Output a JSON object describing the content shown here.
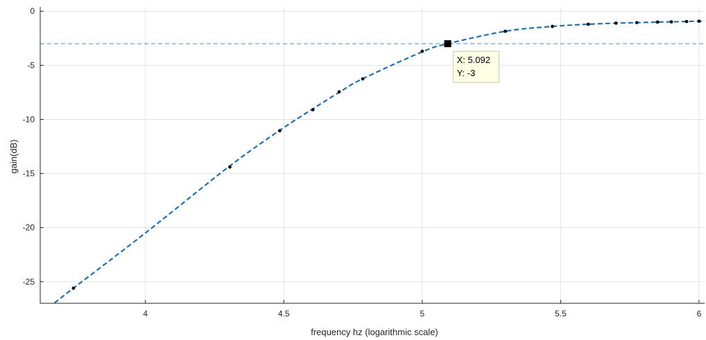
{
  "chart_data": {
    "type": "line",
    "title": "",
    "xlabel": "frequency hz (logarithmic scale)",
    "ylabel": "gain(dB)",
    "xlim": [
      3.62,
      6.02
    ],
    "ylim": [
      -27,
      0.4
    ],
    "xticks": [
      4,
      4.5,
      5,
      5.5,
      6
    ],
    "xtick_labels": [
      "4",
      "4.5",
      "5",
      "5.5",
      "6"
    ],
    "yticks": [
      0,
      -5,
      -10,
      -15,
      -20,
      -25
    ],
    "ytick_labels": [
      "0",
      "-5",
      "-10",
      "-15",
      "-20",
      "-25"
    ],
    "grid": true,
    "colors": {
      "curve": "#1f6fb4",
      "reference": "#5fa3df",
      "points": "#0a0a0a",
      "grid": "#e3e3e3",
      "axis": "#262626",
      "datatip_bg": "#ffffe6",
      "datatip_border": "#c8c8a8"
    },
    "series": [
      {
        "style": "dashed-line",
        "x": [
          3.65,
          3.74,
          4.0,
          4.3,
          4.48,
          4.6,
          4.7,
          4.78,
          5.0,
          5.092,
          5.3,
          5.47,
          5.6,
          5.7,
          5.78,
          5.85,
          5.9,
          5.95,
          6.0,
          6.02
        ],
        "y": [
          -27.4,
          -25.6,
          -20.5,
          -14.4,
          -11.1,
          -9.1,
          -7.5,
          -6.3,
          -3.75,
          -3.0,
          -1.85,
          -1.4,
          -1.2,
          -1.1,
          -1.05,
          -1.0,
          -0.98,
          -0.95,
          -0.92,
          -0.91
        ]
      },
      {
        "style": "markers",
        "x": [
          3.74,
          4.305,
          4.485,
          4.605,
          4.7,
          4.785,
          5.0,
          5.3,
          5.47,
          5.6,
          5.7,
          5.775,
          5.85,
          5.9,
          5.955,
          6.0
        ],
        "y": [
          -25.6,
          -14.4,
          -11.05,
          -9.1,
          -7.45,
          -6.25,
          -3.7,
          -1.85,
          -1.4,
          -1.2,
          -1.1,
          -1.05,
          -1.0,
          -0.98,
          -0.95,
          -0.92
        ]
      }
    ],
    "reference_line": {
      "y": -3
    },
    "datatip": {
      "x": 5.092,
      "y": -3,
      "line1": "X: 5.092",
      "line2": "Y: -3"
    }
  }
}
